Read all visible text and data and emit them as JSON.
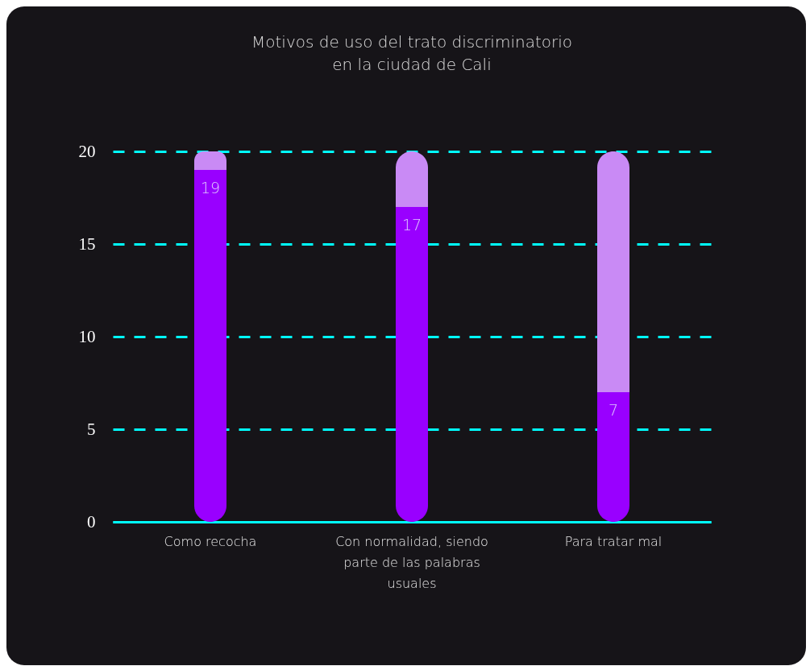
{
  "chart_data": {
    "type": "bar",
    "title": [
      "Motivos de uso del trato discriminatorio",
      "en la ciudad de Cali"
    ],
    "categories": [
      "Como recocha",
      "Con normalidad, siendo parte de las palabras usuales",
      "Para tratar mal"
    ],
    "stacked": true,
    "series": [
      {
        "color": "#9900ff",
        "values": [
          19,
          17,
          7
        ],
        "value_labels": [
          "19",
          "17",
          "7"
        ]
      },
      {
        "color": "#c98af5",
        "values": [
          1,
          3,
          13
        ]
      }
    ],
    "ylim": [
      0,
      20
    ],
    "yticks": [
      0,
      5,
      10,
      15,
      20
    ],
    "grid": "y"
  }
}
